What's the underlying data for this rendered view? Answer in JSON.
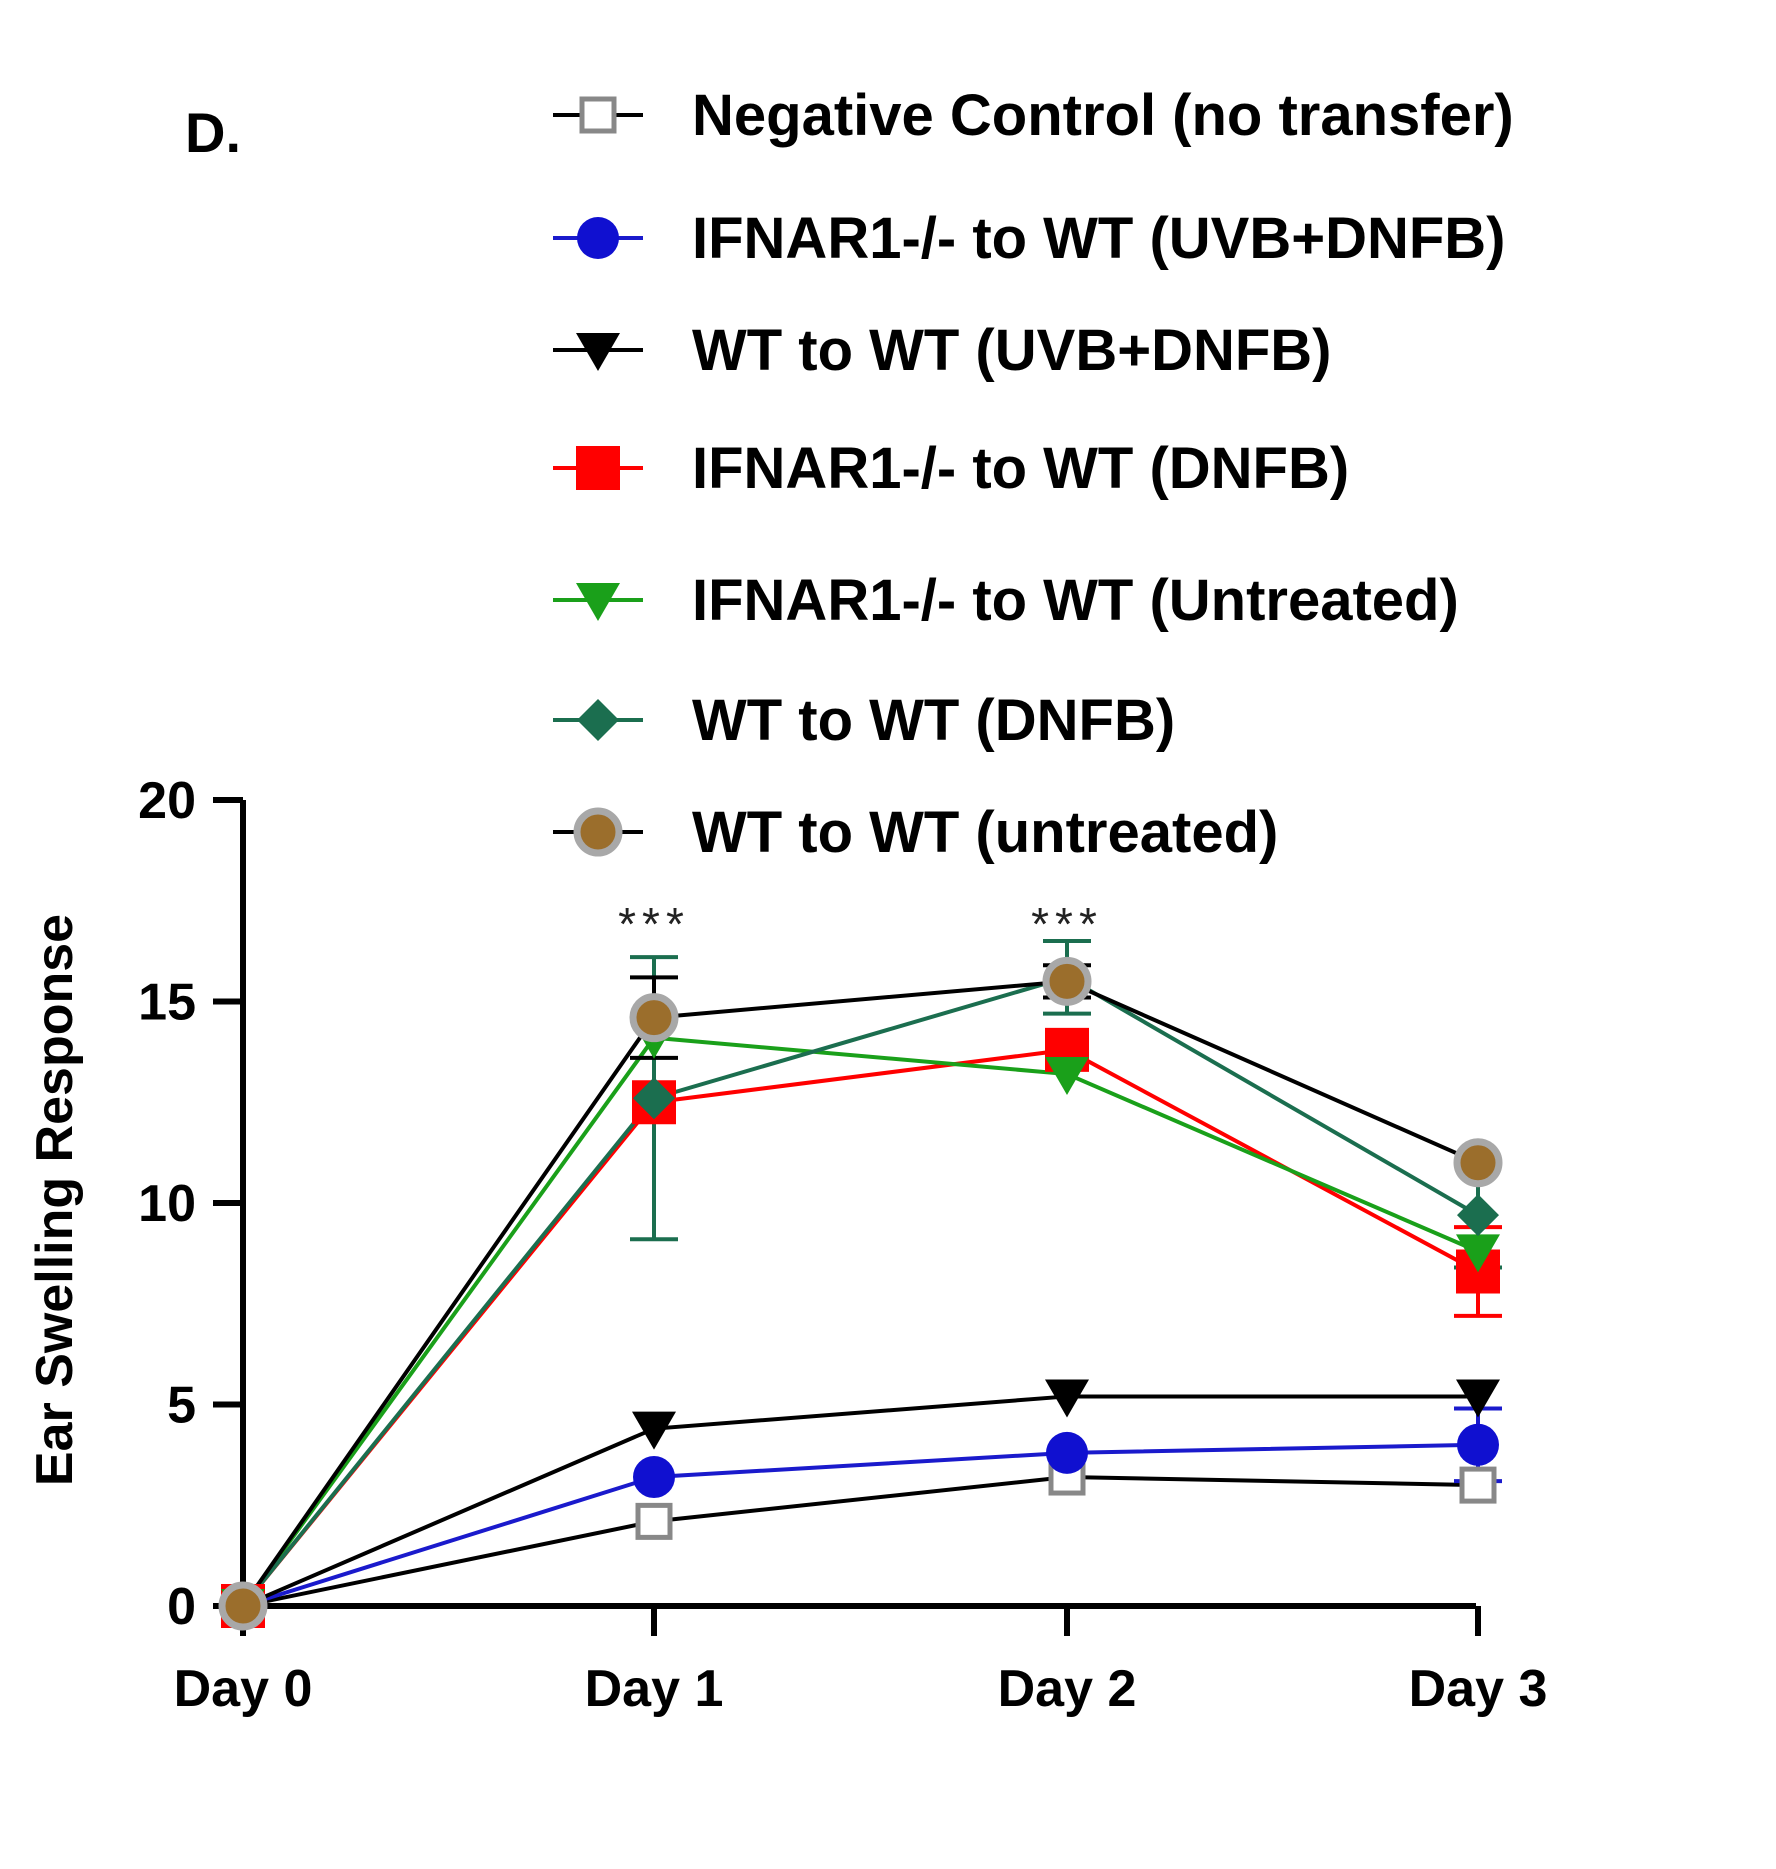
{
  "panel_label": "D.",
  "chart_data": {
    "type": "line",
    "title": "",
    "xlabel": "",
    "ylabel": "Ear Swelling Response",
    "categories": [
      "Day 0",
      "Day 1",
      "Day 2",
      "Day 3"
    ],
    "ylim": [
      0,
      20
    ],
    "yticks": [
      0,
      5,
      10,
      15,
      20
    ],
    "legend_position": "top",
    "grid": false,
    "series": [
      {
        "name": "Negative Control (no transfer)",
        "color": "#000000",
        "marker": "open-square",
        "marker_color": "#888888",
        "values": [
          0,
          2.1,
          3.2,
          3.0
        ],
        "errors": [
          0,
          0,
          0,
          0
        ]
      },
      {
        "name": "IFNAR1-/- to WT (UVB+DNFB)",
        "color": "#1a1acc",
        "marker": "circle",
        "marker_color": "#1010d0",
        "values": [
          0,
          3.2,
          3.8,
          4.0
        ],
        "errors": [
          0,
          0,
          0,
          0.9
        ]
      },
      {
        "name": "WT to WT (UVB+DNFB)",
        "color": "#000000",
        "marker": "triangle-down",
        "marker_color": "#000000",
        "values": [
          0,
          4.4,
          5.2,
          5.2
        ],
        "errors": [
          0,
          0,
          0,
          0
        ]
      },
      {
        "name": "IFNAR1-/- to WT (DNFB)",
        "color": "#ff0000",
        "marker": "square",
        "marker_color": "#ff0000",
        "values": [
          0,
          12.5,
          13.8,
          8.3
        ],
        "errors": [
          0,
          0,
          0,
          1.1
        ]
      },
      {
        "name": "IFNAR1-/- to WT (Untreated)",
        "color": "#1aa01a",
        "marker": "triangle-down",
        "marker_color": "#1aa01a",
        "values": [
          0,
          14.1,
          13.2,
          8.8
        ],
        "errors": [
          0,
          0,
          0,
          0
        ]
      },
      {
        "name": "WT to WT (DNFB)",
        "color": "#1b6e4f",
        "marker": "diamond",
        "marker_color": "#1b6e4f",
        "values": [
          0,
          12.6,
          15.6,
          9.7
        ],
        "errors": [
          0,
          3.5,
          0.9,
          1.3
        ]
      },
      {
        "name": "WT to WT (untreated)",
        "color": "#000000",
        "marker": "circle-ringed",
        "marker_color": "#9b6e2c",
        "values": [
          0,
          14.6,
          15.5,
          11.0
        ],
        "errors": [
          0,
          1.0,
          0.4,
          0
        ]
      }
    ],
    "annotations": [
      {
        "text": "***",
        "category": "Day 1"
      },
      {
        "text": "***",
        "category": "Day 2"
      }
    ]
  }
}
